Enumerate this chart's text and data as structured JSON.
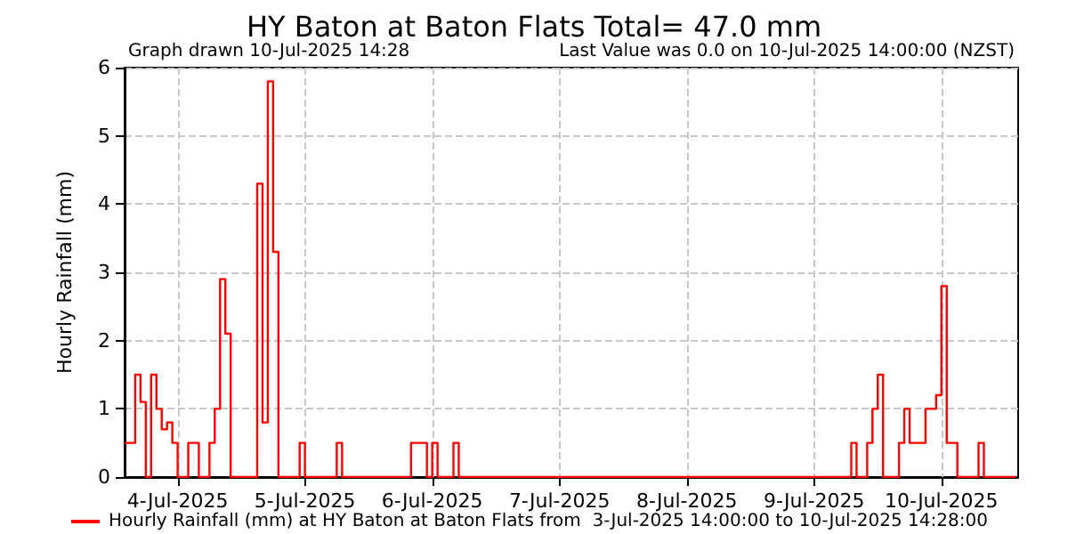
{
  "chart_data": {
    "type": "step",
    "title": "HY Baton at Baton Flats Total= 47.0 mm",
    "ylabel": "Hourly Rainfall (mm)",
    "annotations": [
      "Graph drawn 10-Jul-2025 14:28",
      "Last Value was 0.0 on 10-Jul-2025 14:00:00 (NZST)"
    ],
    "x": [
      "2025-07-03T14:00",
      "2025-07-03T16:00",
      "2025-07-03T17:00",
      "2025-07-03T18:00",
      "2025-07-03T19:00",
      "2025-07-03T20:00",
      "2025-07-03T21:00",
      "2025-07-03T22:00",
      "2025-07-03T23:00",
      "2025-07-04T00:00",
      "2025-07-04T02:00",
      "2025-07-04T04:00",
      "2025-07-04T06:00",
      "2025-07-04T07:00",
      "2025-07-04T08:00",
      "2025-07-04T09:00",
      "2025-07-04T10:00",
      "2025-07-04T15:00",
      "2025-07-04T16:00",
      "2025-07-04T17:00",
      "2025-07-04T18:00",
      "2025-07-04T19:00",
      "2025-07-04T23:00",
      "2025-07-05T00:00",
      "2025-07-05T06:00",
      "2025-07-05T07:00",
      "2025-07-05T20:00",
      "2025-07-05T23:00",
      "2025-07-06T00:00",
      "2025-07-06T01:00",
      "2025-07-06T04:00",
      "2025-07-06T05:00",
      "2025-07-09T07:00",
      "2025-07-09T08:00",
      "2025-07-09T10:00",
      "2025-07-09T11:00",
      "2025-07-09T12:00",
      "2025-07-09T13:00",
      "2025-07-09T16:00",
      "2025-07-09T17:00",
      "2025-07-09T18:00",
      "2025-07-09T21:00",
      "2025-07-09T23:00",
      "2025-07-10T00:00",
      "2025-07-10T01:00",
      "2025-07-10T03:00",
      "2025-07-10T07:00",
      "2025-07-10T08:00",
      "2025-07-10T14:00"
    ],
    "series": [
      {
        "name": "Hourly Rainfall (mm) at HY Baton at Baton Flats from  3-Jul-2025 14:00:00 to 10-Jul-2025 14:28:00",
        "color": "#ff0000",
        "values": [
          0.5,
          1.5,
          1.1,
          0,
          1.5,
          1.0,
          0.7,
          0.8,
          0.5,
          0,
          0.5,
          0,
          0.5,
          1.0,
          2.9,
          2.1,
          0,
          4.3,
          0.8,
          5.8,
          3.3,
          0,
          0.5,
          0,
          0.5,
          0,
          0.5,
          0,
          0.5,
          0,
          0.5,
          0,
          0.5,
          0,
          0.5,
          1.0,
          1.5,
          0,
          0.5,
          1.0,
          0.5,
          1.0,
          1.2,
          2.8,
          0.5,
          0,
          0.5,
          0,
          0
        ]
      }
    ],
    "xlim": [
      "2025-07-03T14:00",
      "2025-07-10T14:28"
    ],
    "xticks": [
      {
        "value": "2025-07-04",
        "label": "4-Jul-2025"
      },
      {
        "value": "2025-07-05",
        "label": "5-Jul-2025"
      },
      {
        "value": "2025-07-06",
        "label": "6-Jul-2025"
      },
      {
        "value": "2025-07-07",
        "label": "7-Jul-2025"
      },
      {
        "value": "2025-07-08",
        "label": "8-Jul-2025"
      },
      {
        "value": "2025-07-09",
        "label": "9-Jul-2025"
      },
      {
        "value": "2025-07-10",
        "label": "10-Jul-2025"
      }
    ],
    "ylim": [
      0,
      6
    ],
    "yticks": [
      0,
      1,
      2,
      3,
      4,
      5,
      6
    ],
    "grid": true,
    "legend": "bottom left",
    "marker": "none",
    "line_style": "solid"
  }
}
